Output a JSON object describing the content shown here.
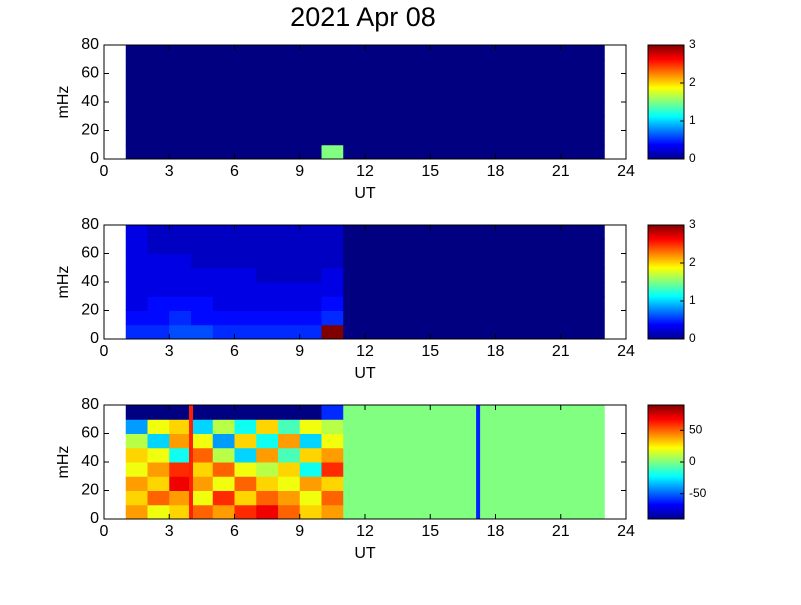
{
  "title": "2021 Apr 08",
  "chart_data": [
    {
      "type": "heatmap",
      "xlabel": "UT",
      "ylabel": "mHz",
      "colormap": "jet",
      "xlim": [
        0,
        24
      ],
      "xticks": [
        0,
        3,
        6,
        9,
        12,
        15,
        18,
        21,
        24
      ],
      "ylim": [
        0,
        80
      ],
      "yticks": [
        0,
        20,
        40,
        60,
        80
      ],
      "clim": [
        0,
        3
      ],
      "cticks": [
        0,
        1,
        2,
        3
      ],
      "x_edges": [
        1,
        2,
        3,
        4,
        5,
        6,
        7,
        8,
        9,
        10,
        11,
        12,
        13,
        14,
        15,
        16,
        17,
        18,
        19,
        20,
        21,
        22,
        23
      ],
      "y_edges": [
        0,
        10,
        20,
        30,
        40,
        50,
        60,
        70,
        80
      ],
      "z": [
        [
          0,
          0,
          0,
          0,
          0,
          0,
          0,
          0,
          0,
          1.5,
          0,
          0,
          0,
          0,
          0,
          0,
          0,
          0,
          0,
          0,
          0,
          0
        ],
        [
          0,
          0,
          0,
          0,
          0,
          0,
          0,
          0,
          0,
          0,
          0,
          0,
          0,
          0,
          0,
          0,
          0,
          0,
          0,
          0,
          0,
          0
        ],
        [
          0,
          0,
          0,
          0,
          0,
          0,
          0,
          0,
          0,
          0,
          0,
          0,
          0,
          0,
          0,
          0,
          0,
          0,
          0,
          0,
          0,
          0
        ],
        [
          0,
          0,
          0,
          0,
          0,
          0,
          0,
          0,
          0,
          0,
          0,
          0,
          0,
          0,
          0,
          0,
          0,
          0,
          0,
          0,
          0,
          0
        ],
        [
          0,
          0,
          0,
          0,
          0,
          0,
          0,
          0,
          0,
          0,
          0,
          0,
          0,
          0,
          0,
          0,
          0,
          0,
          0,
          0,
          0,
          0
        ],
        [
          0,
          0,
          0,
          0,
          0,
          0,
          0,
          0,
          0,
          0,
          0,
          0,
          0,
          0,
          0,
          0,
          0,
          0,
          0,
          0,
          0,
          0
        ],
        [
          0,
          0,
          0,
          0,
          0,
          0,
          0,
          0,
          0,
          0,
          0,
          0,
          0,
          0,
          0,
          0,
          0,
          0,
          0,
          0,
          0,
          0
        ],
        [
          0,
          0,
          0,
          0,
          0,
          0,
          0,
          0,
          0,
          0,
          0,
          0,
          0,
          0,
          0,
          0,
          0,
          0,
          0,
          0,
          0,
          0
        ]
      ]
    },
    {
      "type": "heatmap",
      "xlabel": "UT",
      "ylabel": "mHz",
      "colormap": "jet",
      "xlim": [
        0,
        24
      ],
      "xticks": [
        0,
        3,
        6,
        9,
        12,
        15,
        18,
        21,
        24
      ],
      "ylim": [
        0,
        80
      ],
      "yticks": [
        0,
        20,
        40,
        60,
        80
      ],
      "clim": [
        0,
        3
      ],
      "cticks": [
        0,
        1,
        2,
        3
      ],
      "x_edges": [
        1,
        2,
        3,
        4,
        5,
        6,
        7,
        8,
        9,
        10,
        11,
        12,
        13,
        14,
        15,
        16,
        17,
        18,
        19,
        20,
        21,
        22,
        23
      ],
      "y_edges": [
        0,
        10,
        20,
        30,
        40,
        50,
        60,
        70,
        80
      ],
      "z": [
        [
          0.5,
          0.5,
          0.6,
          0.6,
          0.5,
          0.5,
          0.5,
          0.5,
          0.5,
          3,
          0,
          0,
          0,
          0,
          0,
          0,
          0,
          0,
          0,
          0,
          0,
          0
        ],
        [
          0.4,
          0.4,
          0.5,
          0.4,
          0.4,
          0.4,
          0.4,
          0.4,
          0.4,
          0.5,
          0,
          0,
          0,
          0,
          0,
          0,
          0,
          0,
          0,
          0,
          0,
          0
        ],
        [
          0.3,
          0.4,
          0.4,
          0.4,
          0.3,
          0.3,
          0.3,
          0.3,
          0.3,
          0.4,
          0,
          0,
          0,
          0,
          0,
          0,
          0,
          0,
          0,
          0,
          0,
          0
        ],
        [
          0.3,
          0.3,
          0.3,
          0.3,
          0.3,
          0.3,
          0.3,
          0.3,
          0.3,
          0.3,
          0,
          0,
          0,
          0,
          0,
          0,
          0,
          0,
          0,
          0,
          0,
          0
        ],
        [
          0.3,
          0.3,
          0.3,
          0.3,
          0.3,
          0.3,
          0.2,
          0.2,
          0.2,
          0.3,
          0,
          0,
          0,
          0,
          0,
          0,
          0,
          0,
          0,
          0,
          0,
          0
        ],
        [
          0.3,
          0.3,
          0.3,
          0.2,
          0.2,
          0.2,
          0.2,
          0.2,
          0.2,
          0.2,
          0,
          0,
          0,
          0,
          0,
          0,
          0,
          0,
          0,
          0,
          0,
          0
        ],
        [
          0.3,
          0.2,
          0.2,
          0.2,
          0.2,
          0.2,
          0.2,
          0.2,
          0.2,
          0.2,
          0,
          0,
          0,
          0,
          0,
          0,
          0,
          0,
          0,
          0,
          0,
          0
        ],
        [
          0.3,
          0.2,
          0.2,
          0.2,
          0.2,
          0.2,
          0.2,
          0.2,
          0.2,
          0.2,
          0,
          0,
          0,
          0,
          0,
          0,
          0,
          0,
          0,
          0,
          0,
          0
        ]
      ]
    },
    {
      "type": "heatmap",
      "xlabel": "UT",
      "ylabel": "mHz",
      "colormap": "jet",
      "xlim": [
        0,
        24
      ],
      "xticks": [
        0,
        3,
        6,
        9,
        12,
        15,
        18,
        21,
        24
      ],
      "ylim": [
        0,
        80
      ],
      "yticks": [
        0,
        20,
        40,
        60,
        80
      ],
      "clim": [
        -90,
        90
      ],
      "cticks": [
        -50,
        0,
        50
      ],
      "x_edges": [
        1,
        2,
        3,
        4,
        5,
        6,
        7,
        8,
        9,
        10,
        11,
        12,
        13,
        14,
        15,
        16,
        17,
        18,
        19,
        20,
        21,
        22,
        23
      ],
      "y_edges": [
        0,
        10,
        20,
        30,
        40,
        50,
        60,
        70,
        80
      ],
      "z": [
        [
          40,
          20,
          30,
          50,
          40,
          60,
          70,
          50,
          30,
          40,
          0,
          0,
          0,
          0,
          0,
          0,
          0,
          0,
          0,
          0,
          0,
          0
        ],
        [
          30,
          50,
          40,
          20,
          60,
          30,
          50,
          40,
          20,
          50,
          0,
          0,
          0,
          0,
          0,
          0,
          0,
          0,
          0,
          0,
          0,
          0
        ],
        [
          40,
          30,
          70,
          40,
          20,
          50,
          30,
          20,
          40,
          30,
          0,
          0,
          0,
          0,
          0,
          0,
          0,
          0,
          0,
          0,
          0,
          0
        ],
        [
          20,
          40,
          60,
          30,
          50,
          20,
          10,
          30,
          -20,
          60,
          0,
          0,
          0,
          0,
          0,
          0,
          0,
          0,
          0,
          0,
          0,
          0
        ],
        [
          30,
          20,
          -20,
          50,
          10,
          -30,
          40,
          -10,
          30,
          40,
          0,
          0,
          0,
          0,
          0,
          0,
          0,
          0,
          0,
          0,
          0,
          0
        ],
        [
          10,
          -30,
          40,
          20,
          -40,
          30,
          -20,
          40,
          -30,
          20,
          0,
          0,
          0,
          0,
          0,
          0,
          0,
          0,
          0,
          0,
          0,
          0
        ],
        [
          -40,
          20,
          30,
          -30,
          10,
          -20,
          30,
          -10,
          20,
          10,
          0,
          0,
          0,
          0,
          0,
          0,
          0,
          0,
          0,
          0,
          0,
          0
        ],
        [
          -90,
          -90,
          -90,
          -90,
          -90,
          -90,
          -90,
          -90,
          -90,
          -60,
          0,
          0,
          0,
          0,
          0,
          0,
          0,
          0,
          0,
          0,
          0,
          0
        ]
      ],
      "vlines": [
        {
          "x": 4,
          "color": "#ff2000"
        },
        {
          "x": 17.2,
          "color": "#0020ff"
        }
      ]
    }
  ]
}
